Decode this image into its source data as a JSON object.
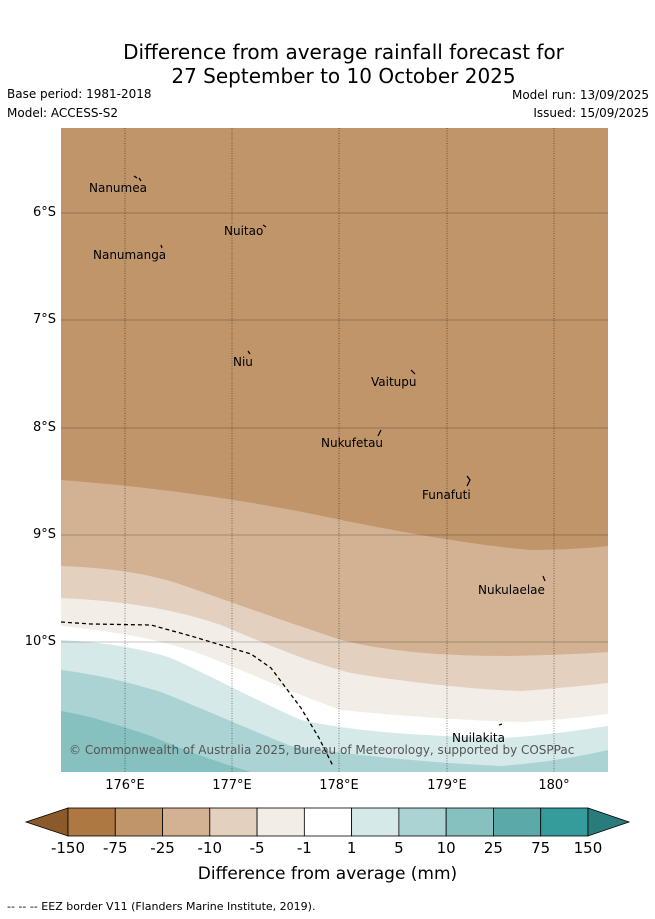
{
  "title_line1": "Difference from average rainfall forecast for",
  "title_line2": "27 September to 10 October 2025",
  "base_period": "Base period: 1981-2018",
  "model": "Model: ACCESS-S2",
  "model_run": "Model run: 13/09/2025",
  "issued": "Issued: 15/09/2025",
  "lat_labels": [
    "6°S",
    "7°S",
    "8°S",
    "9°S",
    "10°S"
  ],
  "lon_labels": [
    "176°E",
    "177°E",
    "178°E",
    "179°E",
    "180°"
  ],
  "islands": [
    {
      "name": "Nanumea",
      "lon": 176.1,
      "lat": -5.7
    },
    {
      "name": "Nuitao",
      "lon": 177.3,
      "lat": -6.1
    },
    {
      "name": "Nanumanga",
      "lon": 176.3,
      "lat": -6.3
    },
    {
      "name": "Niu",
      "lon": 177.2,
      "lat": -7.3
    },
    {
      "name": "Vaitupu",
      "lon": 178.7,
      "lat": -7.5
    },
    {
      "name": "Nukufetau",
      "lon": 178.4,
      "lat": -8.0
    },
    {
      "name": "Funafuti",
      "lon": 179.2,
      "lat": -8.5
    },
    {
      "name": "Nukulaelae",
      "lon": 179.8,
      "lat": -9.4
    },
    {
      "name": "Nuilakita",
      "lon": 179.5,
      "lat": -10.8
    }
  ],
  "copyright": "© Commonwealth of Australia 2025, Bureau of Meteorology, supported by COSPPac",
  "colorbar": {
    "ticks": [
      "-150",
      "-75",
      "-25",
      "-10",
      "-5",
      "-1",
      "1",
      "5",
      "10",
      "25",
      "75",
      "150"
    ],
    "colors": [
      "#8b5a2b",
      "#ad7841",
      "#c0956a",
      "#d2b292",
      "#e3d0bf",
      "#f2ede7",
      "#ffffff",
      "#d5e9e8",
      "#acd3d3",
      "#86c1c0",
      "#5ba9a9",
      "#359b9b",
      "#2a7b7b"
    ],
    "label": "Difference from average (mm)"
  },
  "footnote": "--  --  -- EEZ border V11 (Flanders Marine Institute, 2019)."
}
